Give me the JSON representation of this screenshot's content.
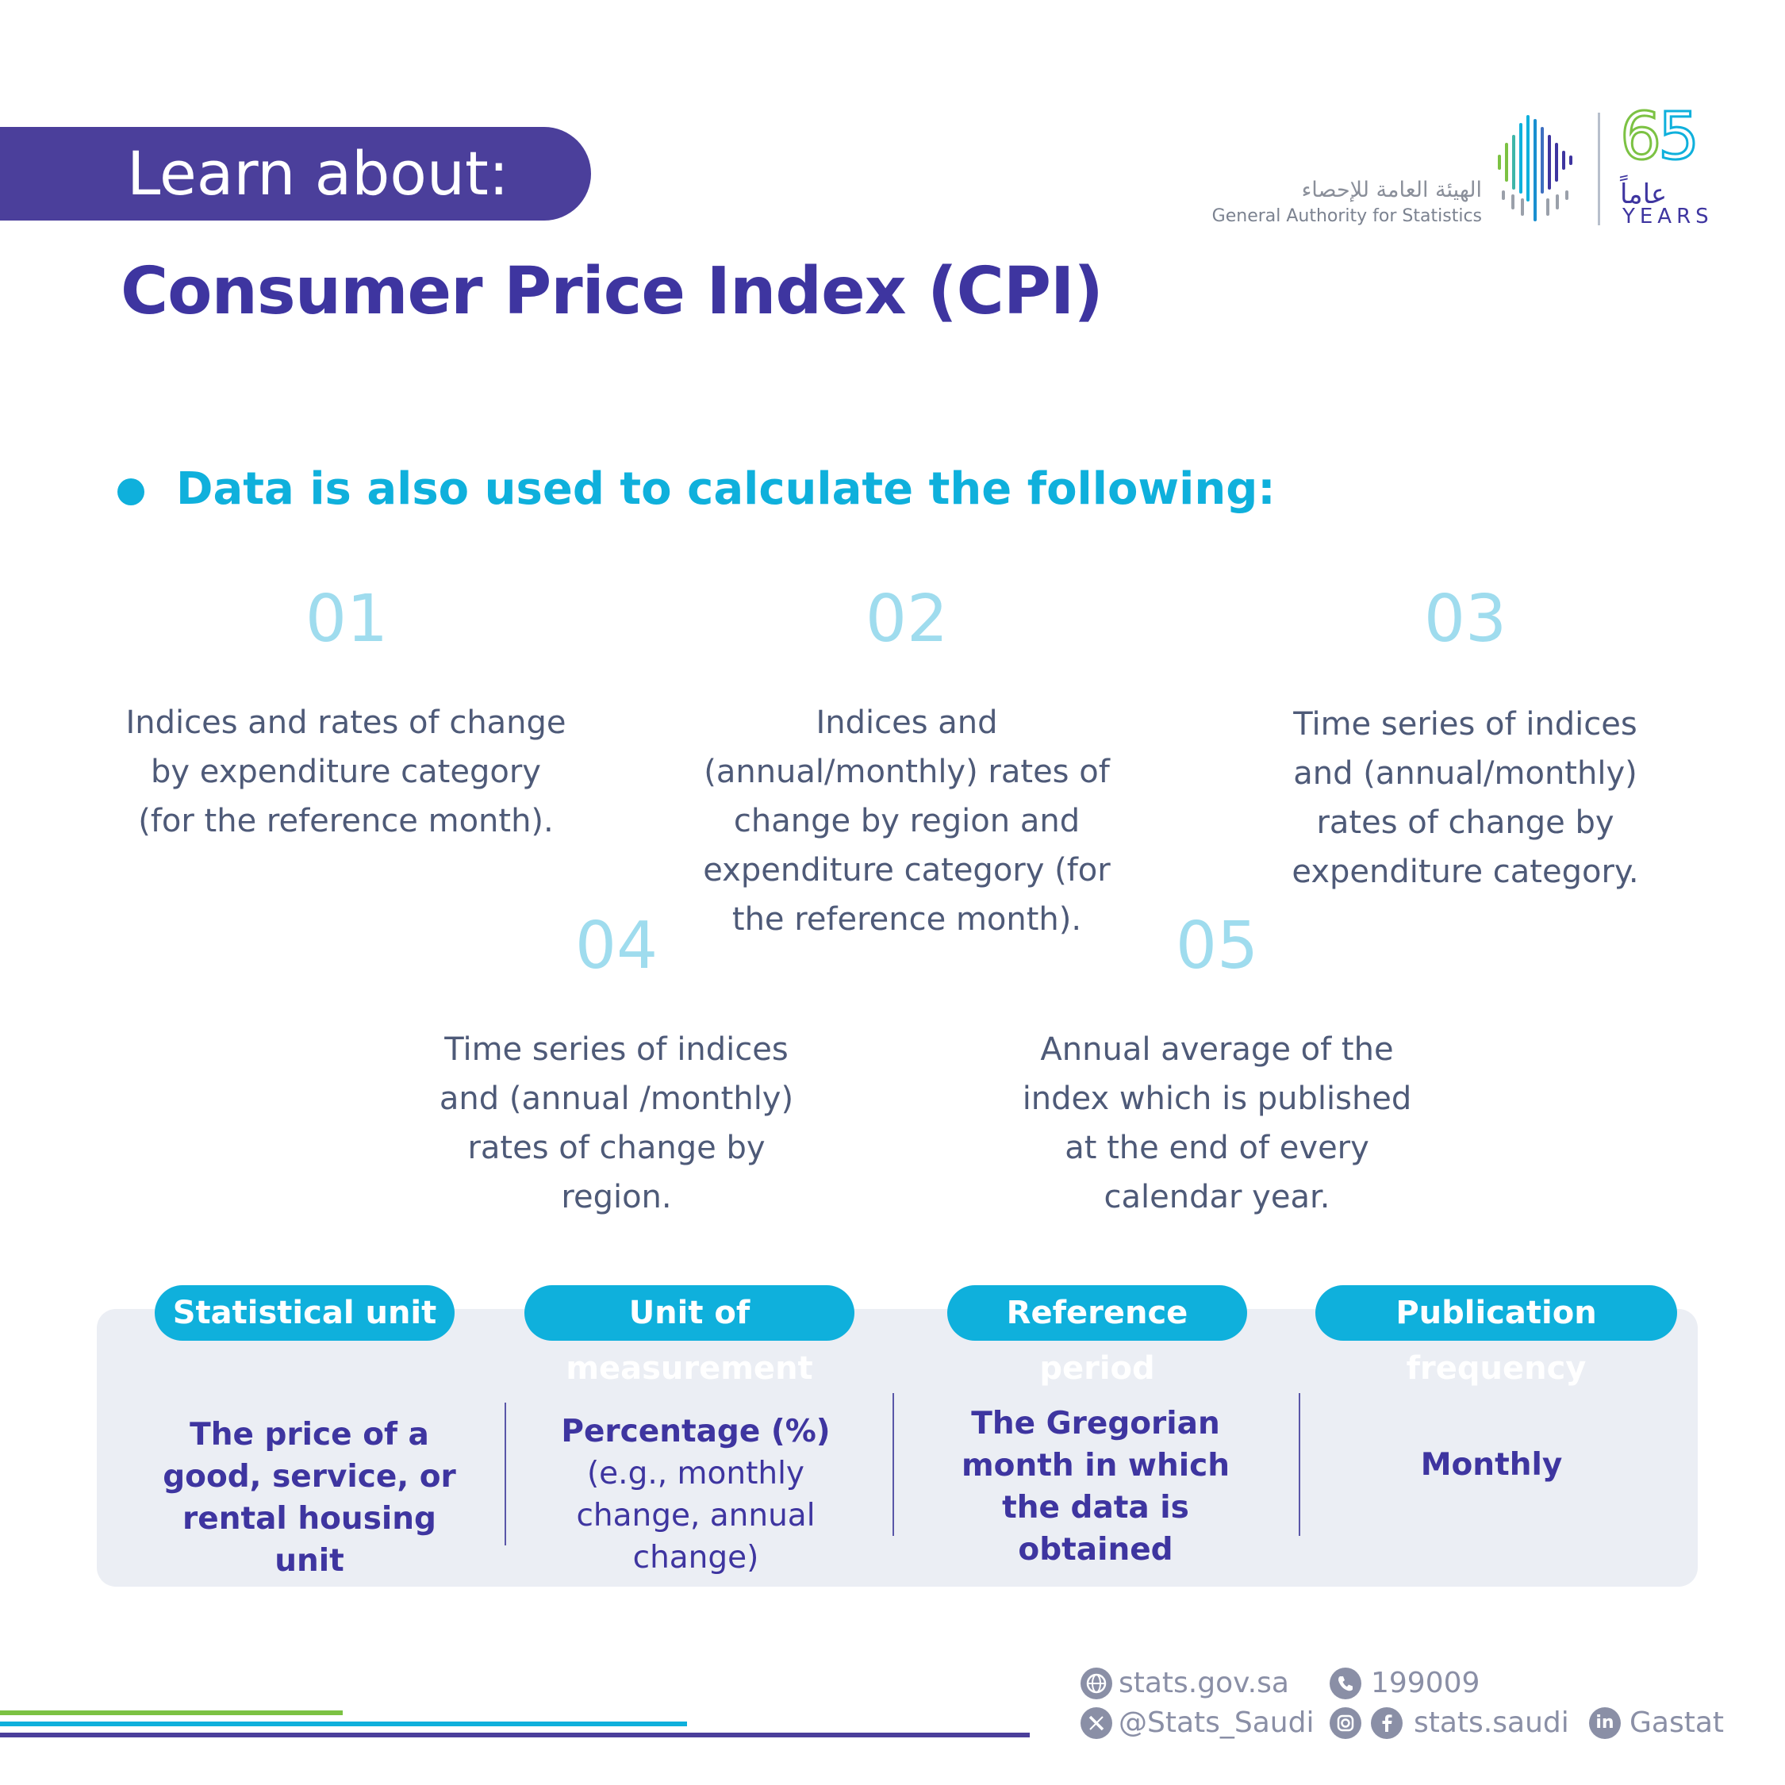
{
  "header": {
    "banner_text": "Learn about:",
    "title": "Consumer Price Index (CPI)"
  },
  "logo": {
    "arabic_name": "الهيئة العامة للإحصاء",
    "english_name": "General Authority for Statistics",
    "anniversary_number": "65",
    "anniversary_arabic": "عاماً",
    "anniversary_years": "YEARS",
    "colors": {
      "purple": "#3e35a0",
      "cyan": "#0fb0dc",
      "green": "#7cc243"
    }
  },
  "section": {
    "subtitle": "Data is also used to calculate the following:",
    "items": [
      {
        "number": "01",
        "text": "Indices and rates of change by expenditure category (for the reference month)."
      },
      {
        "number": "02",
        "text": "Indices and (annual/monthly) rates of change by region and expenditure category (for the reference month)."
      },
      {
        "number": "03",
        "text": "Time series of indices and (annual/monthly) rates of change by expenditure category."
      },
      {
        "number": "04",
        "text": "Time series of indices and (annual /monthly) rates of change by region."
      },
      {
        "number": "05",
        "text": "Annual average of the index which is published at the end of every calendar year."
      }
    ]
  },
  "info_panel": {
    "columns": [
      {
        "label": "Statistical unit",
        "value": "The price of a good, service, or rental housing unit",
        "detail": ""
      },
      {
        "label": "Unit of measurement",
        "value": "Percentage (%)",
        "detail": "(e.g., monthly change, annual change)"
      },
      {
        "label": "Reference period",
        "value": "The Gregorian month in which the data is obtained",
        "detail": ""
      },
      {
        "label": "Publication frequency",
        "value": "Monthly",
        "detail": ""
      }
    ]
  },
  "footer": {
    "website": "stats.gov.sa",
    "phone": "199009",
    "x_handle": "@Stats_Saudi",
    "social_handle": "stats.saudi",
    "linkedin": "Gastat",
    "icons": [
      "globe-icon",
      "phone-icon",
      "x-icon",
      "instagram-icon",
      "facebook-icon",
      "linkedin-icon"
    ]
  }
}
